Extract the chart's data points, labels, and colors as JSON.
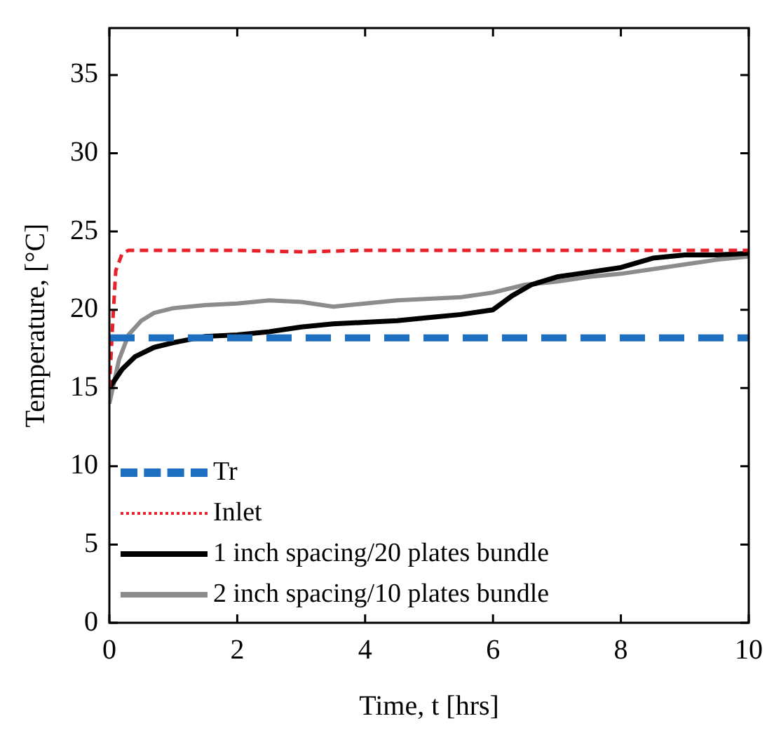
{
  "chart_data": {
    "type": "line",
    "xlabel": "Time, t [hrs]",
    "ylabel": "Temperature, [°C]",
    "xlim": [
      0,
      10
    ],
    "xticks": [
      0,
      2,
      4,
      6,
      8,
      10
    ],
    "ylim": [
      0,
      38
    ],
    "yticks": [
      0,
      5,
      10,
      15,
      20,
      25,
      30,
      35
    ],
    "grid": false,
    "legend": "bottom left",
    "marker": "none",
    "series": [
      {
        "name": "Tr",
        "color": "#1f6fc0",
        "line_style": "dashed",
        "x": [
          0,
          10
        ],
        "values": [
          18.2,
          18.2
        ]
      },
      {
        "name": "Inlet",
        "color": "#e8202a",
        "line_style": "dotted",
        "x": [
          0,
          0.05,
          0.1,
          0.2,
          0.3,
          1,
          2,
          3,
          4,
          5,
          6,
          7,
          8,
          9,
          10
        ],
        "values": [
          15,
          19,
          22.5,
          23.6,
          23.8,
          23.8,
          23.8,
          23.7,
          23.8,
          23.8,
          23.8,
          23.8,
          23.8,
          23.8,
          23.8
        ]
      },
      {
        "name": "1 inch spacing/20 plates bundle",
        "color": "#000000",
        "line_style": "solid",
        "x": [
          0,
          0.2,
          0.4,
          0.7,
          1,
          1.5,
          2,
          2.5,
          3,
          3.5,
          4,
          4.5,
          5,
          5.5,
          6,
          6.3,
          6.6,
          7,
          7.5,
          8,
          8.5,
          9,
          9.5,
          10
        ],
        "values": [
          15,
          16.2,
          17,
          17.6,
          17.9,
          18.3,
          18.4,
          18.6,
          18.9,
          19.1,
          19.2,
          19.3,
          19.5,
          19.7,
          20,
          20.9,
          21.6,
          22.1,
          22.4,
          22.7,
          23.3,
          23.5,
          23.5,
          23.6
        ]
      },
      {
        "name": "2 inch spacing/10 plates bundle",
        "color": "#8c8c8c",
        "line_style": "solid",
        "x": [
          0,
          0.15,
          0.3,
          0.5,
          0.7,
          1,
          1.5,
          2,
          2.5,
          3,
          3.5,
          4,
          4.5,
          5,
          5.5,
          6,
          6.5,
          7,
          7.5,
          8,
          8.5,
          9,
          9.5,
          10
        ],
        "values": [
          14,
          16.8,
          18.4,
          19.3,
          19.8,
          20.1,
          20.3,
          20.4,
          20.6,
          20.5,
          20.2,
          20.4,
          20.6,
          20.7,
          20.8,
          21.1,
          21.6,
          21.8,
          22.1,
          22.3,
          22.6,
          22.9,
          23.2,
          23.4
        ]
      }
    ]
  }
}
